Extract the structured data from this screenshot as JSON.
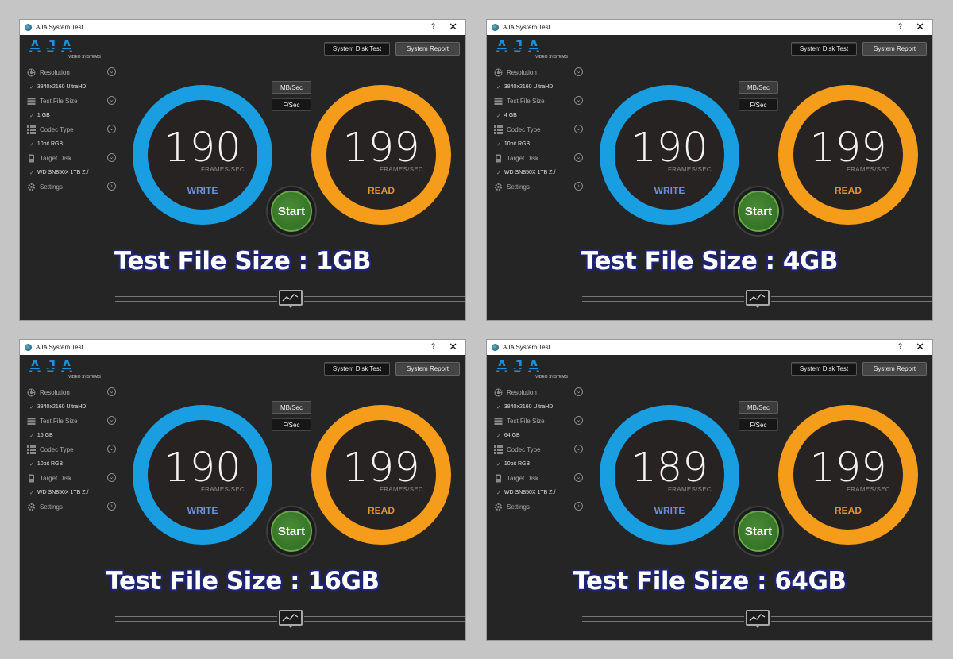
{
  "windows": [
    {
      "title": "AJA System Test",
      "help": "?",
      "close": "✕",
      "logo": {
        "text": "AJA",
        "subtitle": "VIDEO SYSTEMS"
      },
      "buttons": {
        "disk_test": "System Disk Test",
        "report": "System Report"
      },
      "units": {
        "mb": "MB/Sec",
        "fps": "F/Sec"
      },
      "sidebar": {
        "resolution": {
          "label": "Resolution",
          "value": "3840x2160 UltraHD"
        },
        "file_size": {
          "label": "Test File Size",
          "value": "1 GB"
        },
        "codec": {
          "label": "Codec Type",
          "value": "10bit RGB"
        },
        "disk": {
          "label": "Target Disk",
          "value": "WD SN850X 1TB Z:/"
        },
        "settings": {
          "label": "Settings"
        }
      },
      "write": {
        "value": "190",
        "unit": "FRAMES/SEC",
        "label": "WRITE"
      },
      "read": {
        "value": "199",
        "unit": "FRAMES/SEC",
        "label": "READ"
      },
      "start": "Start",
      "caption": "Test File Size : 1GB"
    },
    {
      "title": "AJA System Test",
      "help": "?",
      "close": "✕",
      "logo": {
        "text": "AJA",
        "subtitle": "VIDEO SYSTEMS"
      },
      "buttons": {
        "disk_test": "System Disk Test",
        "report": "System Report"
      },
      "units": {
        "mb": "MB/Sec",
        "fps": "F/Sec"
      },
      "sidebar": {
        "resolution": {
          "label": "Resolution",
          "value": "3840x2160 UltraHD"
        },
        "file_size": {
          "label": "Test File Size",
          "value": "4 GB"
        },
        "codec": {
          "label": "Codec Type",
          "value": "10bit RGB"
        },
        "disk": {
          "label": "Target Disk",
          "value": "WD SN850X 1TB Z:/"
        },
        "settings": {
          "label": "Settings"
        }
      },
      "write": {
        "value": "190",
        "unit": "FRAMES/SEC",
        "label": "WRITE"
      },
      "read": {
        "value": "199",
        "unit": "FRAMES/SEC",
        "label": "READ"
      },
      "start": "Start",
      "caption": "Test File Size : 4GB"
    },
    {
      "title": "AJA System Test",
      "help": "?",
      "close": "✕",
      "logo": {
        "text": "AJA",
        "subtitle": "VIDEO SYSTEMS"
      },
      "buttons": {
        "disk_test": "System Disk Test",
        "report": "System Report"
      },
      "units": {
        "mb": "MB/Sec",
        "fps": "F/Sec"
      },
      "sidebar": {
        "resolution": {
          "label": "Resolution",
          "value": "3840x2160 UltraHD"
        },
        "file_size": {
          "label": "Test File Size",
          "value": "16 GB"
        },
        "codec": {
          "label": "Codec Type",
          "value": "10bit RGB"
        },
        "disk": {
          "label": "Target Disk",
          "value": "WD SN850X 1TB Z:/"
        },
        "settings": {
          "label": "Settings"
        }
      },
      "write": {
        "value": "190",
        "unit": "FRAMES/SEC",
        "label": "WRITE"
      },
      "read": {
        "value": "199",
        "unit": "FRAMES/SEC",
        "label": "READ"
      },
      "start": "Start",
      "caption": "Test File Size : 16GB"
    },
    {
      "title": "AJA System Test",
      "help": "?",
      "close": "✕",
      "logo": {
        "text": "AJA",
        "subtitle": "VIDEO SYSTEMS"
      },
      "buttons": {
        "disk_test": "System Disk Test",
        "report": "System Report"
      },
      "units": {
        "mb": "MB/Sec",
        "fps": "F/Sec"
      },
      "sidebar": {
        "resolution": {
          "label": "Resolution",
          "value": "3840x2160 UltraHD"
        },
        "file_size": {
          "label": "Test File Size",
          "value": "64 GB"
        },
        "codec": {
          "label": "Codec Type",
          "value": "10bit RGB"
        },
        "disk": {
          "label": "Target Disk",
          "value": "WD SN850X 1TB Z:/"
        },
        "settings": {
          "label": "Settings"
        }
      },
      "write": {
        "value": "189",
        "unit": "FRAMES/SEC",
        "label": "WRITE"
      },
      "read": {
        "value": "199",
        "unit": "FRAMES/SEC",
        "label": "READ"
      },
      "start": "Start",
      "caption": "Test File Size : 64GB"
    }
  ],
  "colors": {
    "write_ring": "#1a9ee2",
    "read_ring": "#f59d1b",
    "start_button": "#2d6a21",
    "logo_blue": "#1e90d8",
    "caption_outline": "#1f2475"
  }
}
